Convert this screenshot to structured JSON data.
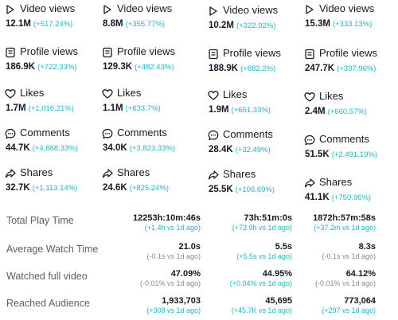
{
  "columns": [
    {
      "metrics": [
        {
          "label": "Video views",
          "icon": "play-icon",
          "value": "12.1M",
          "change": "(+517.24%)"
        },
        {
          "label": "Profile views",
          "icon": "profile-icon",
          "value": "186.9K",
          "change": "(+722.33%)"
        },
        {
          "label": "Likes",
          "icon": "heart-icon",
          "value": "1.7M",
          "change": "(+1,016.21%)"
        },
        {
          "label": "Comments",
          "icon": "comment-icon",
          "value": "44.7K",
          "change": "(+4,868.33%)"
        },
        {
          "label": "Shares",
          "icon": "share-icon",
          "value": "32.7K",
          "change": "(+1,113.14%)"
        }
      ]
    },
    {
      "metrics": [
        {
          "label": "Video views",
          "icon": "play-icon",
          "value": "8.8M",
          "change": "(+355.77%)"
        },
        {
          "label": "Profile views",
          "icon": "profile-icon",
          "value": "129.3K",
          "change": "(+482.43%)"
        },
        {
          "label": "Likes",
          "icon": "heart-icon",
          "value": "1.1M",
          "change": "(+633.7%)"
        },
        {
          "label": "Comments",
          "icon": "comment-icon",
          "value": "34.0K",
          "change": "(+3,823.33%)"
        },
        {
          "label": "Shares",
          "icon": "share-icon",
          "value": "24.6K",
          "change": "(+825.24%)"
        }
      ]
    },
    {
      "metrics": [
        {
          "label": "Video views",
          "icon": "play-icon",
          "value": "10.2M",
          "change": "(+322.92%)"
        },
        {
          "label": "Profile views",
          "icon": "profile-icon",
          "value": "188.9K",
          "change": "(+882.2%)"
        },
        {
          "label": "Likes",
          "icon": "heart-icon",
          "value": "1.9M",
          "change": "(+651.33%)"
        },
        {
          "label": "Comments",
          "icon": "comment-icon",
          "value": "28.4K",
          "change": "(+32.49%)"
        },
        {
          "label": "Shares",
          "icon": "share-icon",
          "value": "25.5K",
          "change": "(+106.69%)"
        }
      ]
    },
    {
      "metrics": [
        {
          "label": "Video views",
          "icon": "play-icon",
          "value": "15.3M",
          "change": "(+333.13%)"
        },
        {
          "label": "Profile views",
          "icon": "profile-icon",
          "value": "247.7K",
          "change": "(+397.96%)"
        },
        {
          "label": "Likes",
          "icon": "heart-icon",
          "value": "2.4M",
          "change": "(+660.57%)"
        },
        {
          "label": "Comments",
          "icon": "comment-icon",
          "value": "51.5K",
          "change": "(+2,491.19%)"
        },
        {
          "label": "Shares",
          "icon": "share-icon",
          "value": "41.1K",
          "change": "(+750.96%)"
        }
      ]
    }
  ],
  "stats": [
    {
      "label": "Total Play Time",
      "cells": [
        {
          "value": "12253h:10m:46s",
          "sub": "(+1.4h vs 1d ago)",
          "sub_tone": "accent"
        },
        {
          "value": "73h:51m:0s",
          "sub": "(+73.9h vs 1d ago)",
          "sub_tone": "accent"
        },
        {
          "value": "1872h:57m:58s",
          "sub": "(+37.2m vs 1d ago)",
          "sub_tone": "accent"
        }
      ]
    },
    {
      "label": "Average Watch Time",
      "cells": [
        {
          "value": "21.0s",
          "sub": "(-0.1s vs 1d ago)",
          "sub_tone": "grey"
        },
        {
          "value": "5.5s",
          "sub": "(+5.5s vs 1d ago)",
          "sub_tone": "accent"
        },
        {
          "value": "8.3s",
          "sub": "(-0.1s vs 1d ago)",
          "sub_tone": "grey"
        }
      ]
    },
    {
      "label": "Watched full video",
      "cells": [
        {
          "value": "47.09%",
          "sub": "(-0.01% vs 1d ago)",
          "sub_tone": "grey"
        },
        {
          "value": "44.95%",
          "sub": "(+0.04% vs 1d ago)",
          "sub_tone": "accent"
        },
        {
          "value": "64.12%",
          "sub": "(-0.01% vs 1d ago)",
          "sub_tone": "grey"
        }
      ]
    },
    {
      "label": "Reached Audience",
      "cells": [
        {
          "value": "1,933,703",
          "sub": "(+308 vs 1d ago)",
          "sub_tone": "accent"
        },
        {
          "value": "45,695",
          "sub": "(+45.7K vs 1d ago)",
          "sub_tone": "accent"
        },
        {
          "value": "773,064",
          "sub": "(+297 vs 1d ago)",
          "sub_tone": "accent"
        }
      ]
    }
  ],
  "colors": {
    "accent": "#20b4c8",
    "text": "#161823",
    "muted": "#5f6066",
    "negative_sub": "#8a8b91"
  }
}
